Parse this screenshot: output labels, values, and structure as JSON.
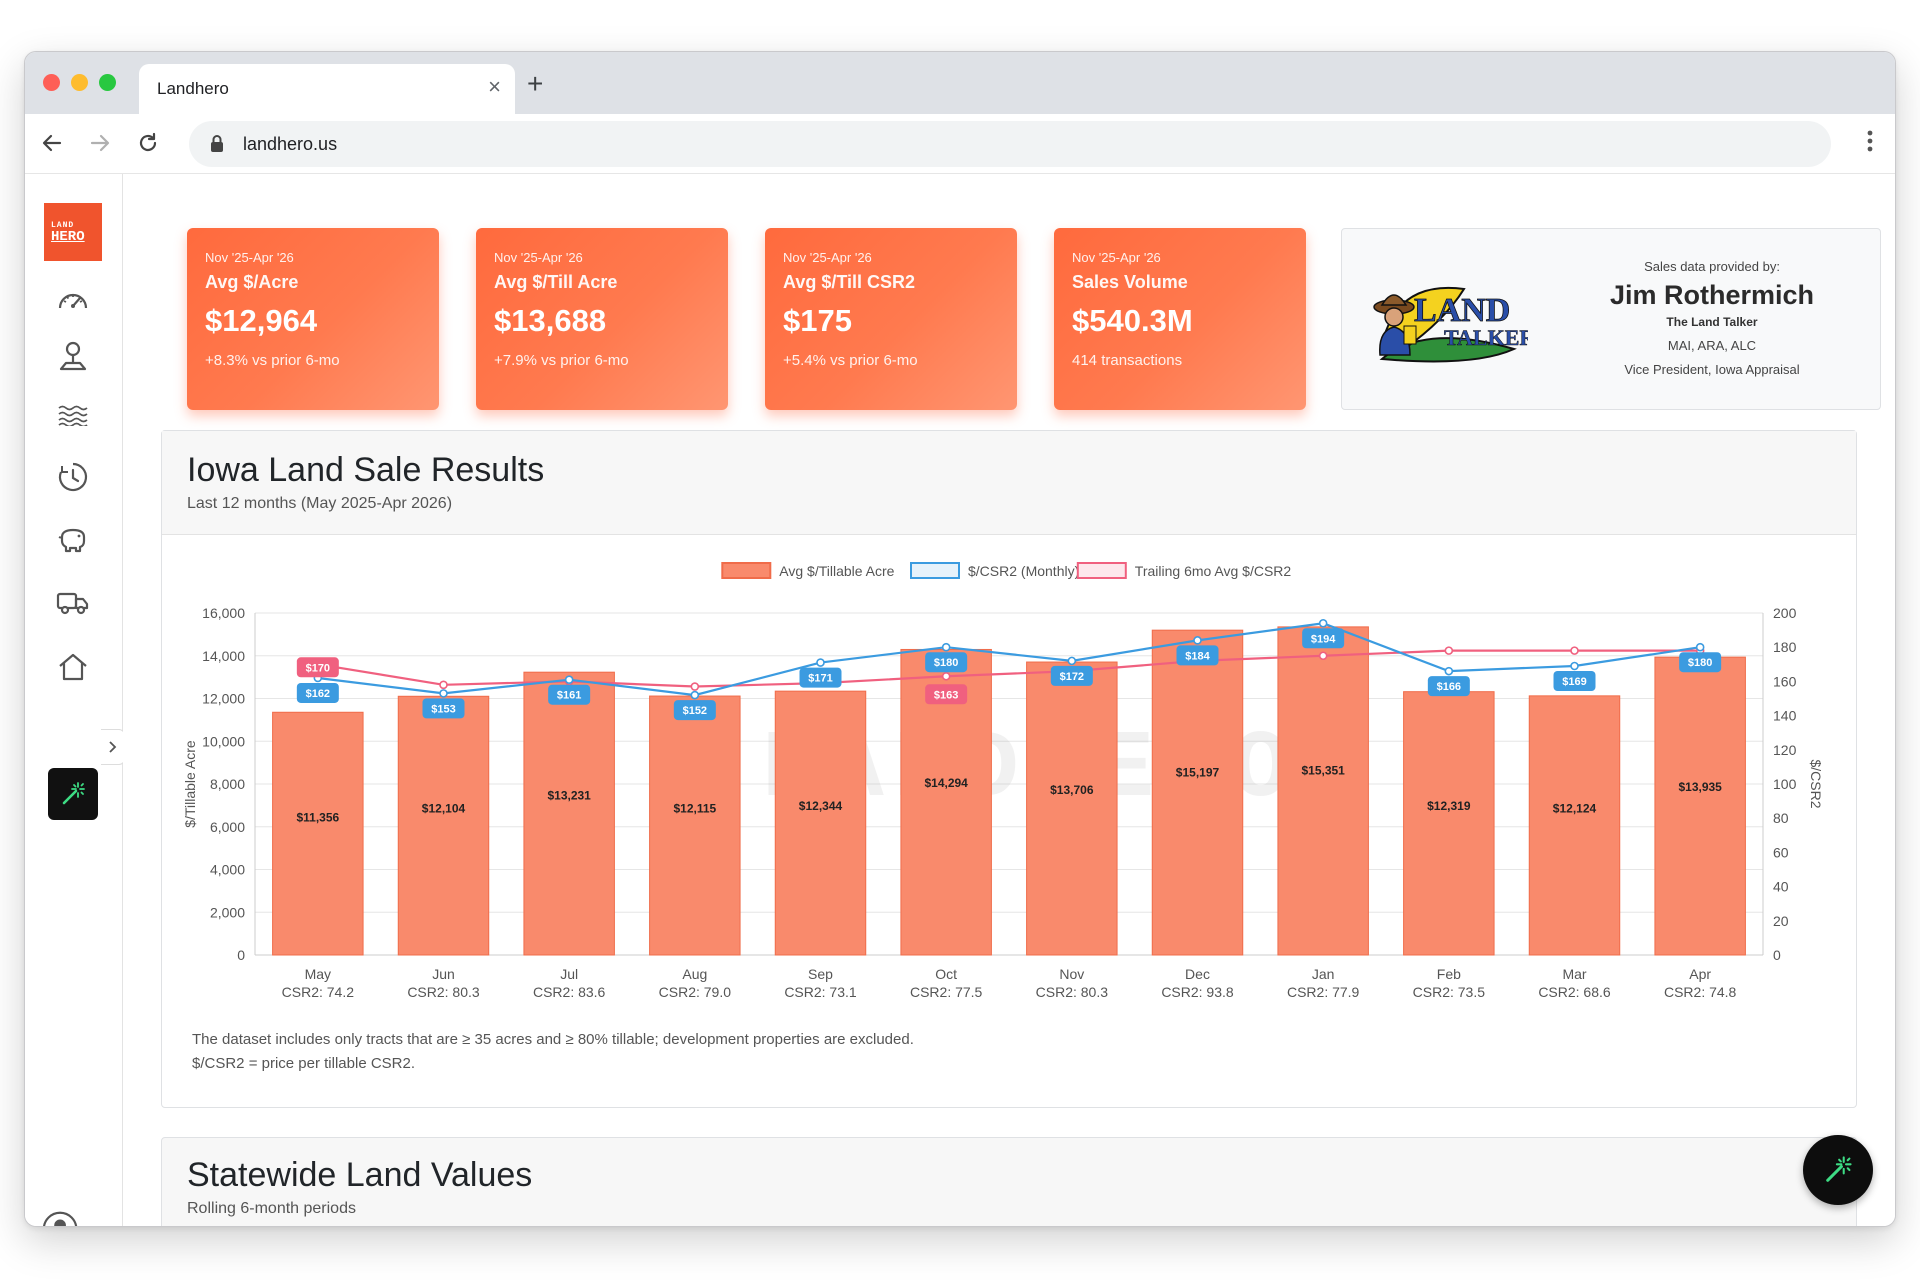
{
  "browser": {
    "tab_title": "Landhero",
    "close_glyph": "×",
    "new_tab_glyph": "+",
    "url": "landhero.us"
  },
  "sidebar": {
    "logo_top": "LAND",
    "logo_bottom": "HERO",
    "items": [
      {
        "icon": "gauge-icon"
      },
      {
        "icon": "map-pin-icon"
      },
      {
        "icon": "waves-icon"
      },
      {
        "icon": "clock-icon"
      },
      {
        "icon": "piggy-bank-icon"
      },
      {
        "icon": "truck-icon"
      },
      {
        "icon": "house-icon"
      },
      {
        "icon": "magic-wand-icon",
        "active": true
      }
    ]
  },
  "stats": [
    {
      "period": "Nov '25-Apr '26",
      "label": "Avg $/Acre",
      "value": "$12,964",
      "sub": "+8.3% vs prior 6-mo"
    },
    {
      "period": "Nov '25-Apr '26",
      "label": "Avg $/Till Acre",
      "value": "$13,688",
      "sub": "+7.9% vs prior 6-mo"
    },
    {
      "period": "Nov '25-Apr '26",
      "label": "Avg $/Till CSR2",
      "value": "$175",
      "sub": "+5.4% vs prior 6-mo"
    },
    {
      "period": "Nov '25-Apr '26",
      "label": "Sales Volume",
      "value": "$540.3M",
      "sub": "414 transactions"
    }
  ],
  "provider": {
    "caption": "Sales data provided by:",
    "name": "Jim Rothermich",
    "company": "The Land Talker",
    "credentials": "MAI, ARA, ALC",
    "role": "Vice President, Iowa Appraisal",
    "logo_line1": "LAND",
    "logo_line2": "TALKER"
  },
  "panel": {
    "title": "Iowa Land Sale Results",
    "subtitle": "Last 12 months (May 2025-Apr 2026)",
    "footnote_1": "The dataset includes only tracts that are ≥ 35 acres and ≥ 80% tillable; development properties are excluded.",
    "footnote_2": "$/CSR2 = price per tillable CSR2."
  },
  "chart_data": {
    "type": "bar",
    "categories": [
      "May",
      "Jun",
      "Jul",
      "Aug",
      "Sep",
      "Oct",
      "Nov",
      "Dec",
      "Jan",
      "Feb",
      "Mar",
      "Apr"
    ],
    "category_sublabels": [
      "CSR2: 74.2",
      "CSR2: 80.3",
      "CSR2: 83.6",
      "CSR2: 79.0",
      "CSR2: 73.1",
      "CSR2: 77.5",
      "CSR2: 80.3",
      "CSR2: 93.8",
      "CSR2: 77.9",
      "CSR2: 73.5",
      "CSR2: 68.6",
      "CSR2: 74.8"
    ],
    "ylabel": "$/Tillable Acre",
    "y2label": "$/CSR2",
    "ylim": [
      0,
      16000
    ],
    "y2lim": [
      0,
      200
    ],
    "yticks": [
      "0",
      "2,000",
      "4,000",
      "6,000",
      "8,000",
      "10,000",
      "12,000",
      "14,000",
      "16,000"
    ],
    "y2ticks": [
      "0",
      "20",
      "40",
      "60",
      "80",
      "100",
      "120",
      "140",
      "160",
      "180",
      "200"
    ],
    "legend_position": "top",
    "series": [
      {
        "name": "Avg $/Tillable Acre",
        "kind": "bar",
        "axis": "left",
        "color": "#f98a6c",
        "values": [
          11356,
          12104,
          13231,
          12115,
          12344,
          14294,
          13706,
          15197,
          15351,
          12319,
          12124,
          13935
        ],
        "labels": [
          "$11,356",
          "$12,104",
          "$13,231",
          "$12,115",
          "$12,344",
          "$14,294",
          "$13,706",
          "$15,197",
          "$15,351",
          "$12,319",
          "$12,124",
          "$13,935"
        ]
      },
      {
        "name": "$/CSR2 (Monthly)",
        "kind": "line",
        "axis": "right",
        "color": "#3b9be0",
        "values": [
          162,
          153,
          161,
          152,
          171,
          180,
          172,
          184,
          194,
          166,
          169,
          180
        ],
        "labels": [
          "$162",
          "$153",
          "$161",
          "$152",
          "$171",
          "$180",
          "$172",
          "$184",
          "$194",
          "$166",
          "$169",
          "$180"
        ]
      },
      {
        "name": "Trailing 6mo Avg $/CSR2",
        "kind": "line",
        "axis": "right",
        "color": "#f0607f",
        "values": [
          170,
          158,
          160,
          157,
          159,
          163,
          166,
          172,
          175,
          178,
          178,
          178
        ],
        "labels": [
          "$170",
          "",
          "",
          "",
          "",
          "$163",
          "",
          "",
          "",
          "",
          "",
          ""
        ]
      }
    ],
    "watermark": "LANDHERO",
    "grid": true
  },
  "panel2": {
    "title": "Statewide Land Values",
    "subtitle": "Rolling 6-month periods"
  }
}
